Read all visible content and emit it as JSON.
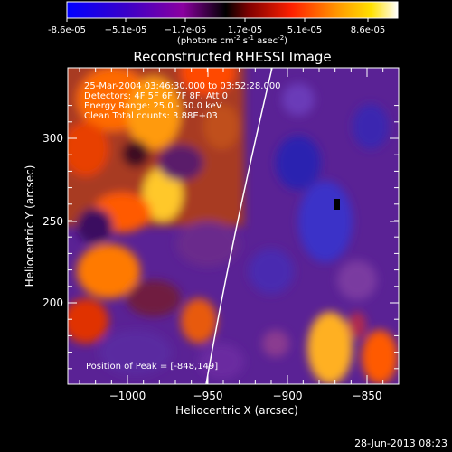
{
  "colorbar": {
    "ticks": [
      "-8.6e-05",
      "−5.1e-05",
      "−1.7e-05",
      "1.7e-05",
      "5.1e-05",
      "8.6e-05"
    ],
    "unit_main": "(photons cm",
    "unit_sup1": "-2",
    "unit_mid": " s",
    "unit_sup2": "-1",
    "unit_mid2": " asec",
    "unit_sup3": "-2",
    "unit_end": ")"
  },
  "plot": {
    "title": "Reconstructed RHESSI Image",
    "info_lines": [
      "25-Mar-2004 03:46:30.000 to 03:52:28.000",
      "Detectors: 4F 5F 6F 7F 8F, Att 0",
      "Energy Range: 25.0 - 50.0 keV",
      "Clean    Total counts: 3.88E+03"
    ],
    "peak_label": "Position of Peak = [-848,149]",
    "xlabel": "Heliocentric X (arcsec)",
    "ylabel": "Heliocentric Y (arcsec)",
    "xticks": [
      "−1000",
      "−950",
      "−900",
      "−850"
    ],
    "yticks": [
      "300",
      "250",
      "200"
    ]
  },
  "footer": {
    "timestamp": "28-Jun-2013 08:23"
  }
}
